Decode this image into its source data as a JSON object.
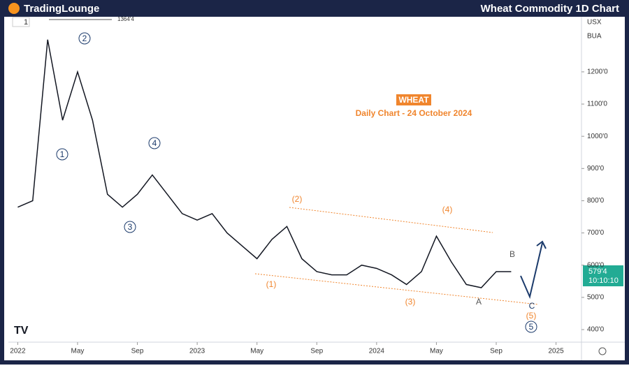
{
  "chart_data": {
    "type": "line",
    "brand": "TradingLounge",
    "title": "Wheat Commodity 1D Chart",
    "symbol": "WHEAT",
    "subtitle": "Daily Chart - 24 October 2024",
    "currency": "USX",
    "order_side": "BUA",
    "interval": "1",
    "high_label": "1364'4",
    "last_price_label": "579'4",
    "countdown": "10:10:10",
    "x": [
      "2022-01",
      "2022-02",
      "2022-03",
      "2022-04",
      "2022-05",
      "2022-06",
      "2022-07",
      "2022-08",
      "2022-09",
      "2022-10",
      "2022-11",
      "2022-12",
      "2023-01",
      "2023-02",
      "2023-03",
      "2023-04",
      "2023-05",
      "2023-06",
      "2023-07",
      "2023-08",
      "2023-09",
      "2023-10",
      "2023-11",
      "2023-12",
      "2024-01",
      "2024-02",
      "2024-03",
      "2024-04",
      "2024-05",
      "2024-06",
      "2024-07",
      "2024-08",
      "2024-09",
      "2024-10"
    ],
    "series": [
      {
        "name": "Wheat",
        "color": "#131722",
        "values": [
          780,
          800,
          1300,
          1050,
          1200,
          1050,
          820,
          780,
          820,
          880,
          820,
          760,
          740,
          760,
          700,
          660,
          620,
          680,
          720,
          620,
          580,
          570,
          570,
          600,
          590,
          570,
          540,
          580,
          690,
          610,
          540,
          530,
          580,
          580
        ]
      }
    ],
    "xlim": [
      "2021-12",
      "2025-02"
    ],
    "xticks": [
      {
        "value": "2022-01",
        "label": "2022"
      },
      {
        "value": "2022-05",
        "label": "May"
      },
      {
        "value": "2022-09",
        "label": "Sep"
      },
      {
        "value": "2023-01",
        "label": "2023"
      },
      {
        "value": "2023-05",
        "label": "May"
      },
      {
        "value": "2023-09",
        "label": "Sep"
      },
      {
        "value": "2024-01",
        "label": "2024"
      },
      {
        "value": "2024-05",
        "label": "May"
      },
      {
        "value": "2024-09",
        "label": "Sep"
      },
      {
        "value": "2025-01",
        "label": "2025"
      }
    ],
    "ylim": [
      361,
      1371
    ],
    "yticks": [
      {
        "value": 400,
        "label": "400'0"
      },
      {
        "value": 500,
        "label": "500'0"
      },
      {
        "value": 600,
        "label": "600'0"
      },
      {
        "value": 700,
        "label": "700'0"
      },
      {
        "value": 800,
        "label": "800'0"
      },
      {
        "value": 900,
        "label": "900'0"
      },
      {
        "value": 1000,
        "label": "1000'0"
      },
      {
        "value": 1100,
        "label": "1100'0"
      },
      {
        "value": 1200,
        "label": "1200'0"
      }
    ],
    "annotations": [
      "1",
      "2",
      "3",
      "4",
      "5",
      "(1)",
      "(2)",
      "(3)",
      "(4)",
      "(5)",
      "A",
      "B",
      "C"
    ]
  }
}
